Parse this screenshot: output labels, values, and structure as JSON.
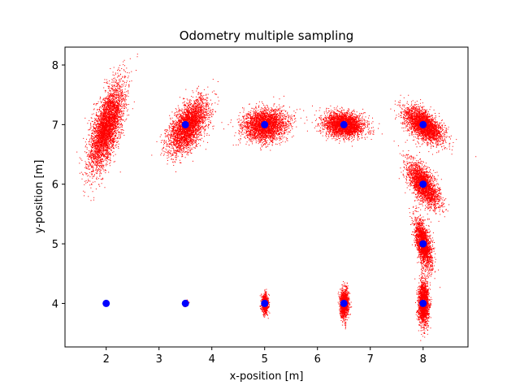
{
  "chart_data": {
    "type": "scatter",
    "title": "Odometry multiple sampling",
    "xlabel": "x-position [m]",
    "ylabel": "y-position [m]",
    "xlim": [
      1.22,
      8.85
    ],
    "ylim": [
      3.27,
      8.3
    ],
    "xticks": [
      2,
      3,
      4,
      5,
      6,
      7,
      8
    ],
    "yticks": [
      4,
      5,
      6,
      7,
      8
    ],
    "grid": false,
    "series": [
      {
        "role": "landmarks",
        "color": "#0000ff",
        "marker": "circle",
        "points": [
          [
            2.0,
            4.0
          ],
          [
            3.5,
            4.0
          ],
          [
            5.0,
            4.0
          ],
          [
            6.5,
            4.0
          ],
          [
            8.0,
            4.0
          ],
          [
            8.0,
            5.0
          ],
          [
            8.0,
            6.0
          ],
          [
            3.5,
            7.0
          ],
          [
            5.0,
            7.0
          ],
          [
            6.5,
            7.0
          ],
          [
            8.0,
            7.0
          ]
        ]
      },
      {
        "role": "samples",
        "color": "#ff0000",
        "marker": "pixel",
        "clouds": [
          {
            "center": [
              3.5,
              4.0
            ],
            "sx": 0.03,
            "sy": 0.03,
            "rho": 0.0,
            "n": 60
          },
          {
            "center": [
              5.0,
              4.0
            ],
            "sx": 0.03,
            "sy": 0.08,
            "rho": 0.0,
            "n": 900
          },
          {
            "center": [
              6.5,
              4.0
            ],
            "sx": 0.04,
            "sy": 0.12,
            "rho": 0.0,
            "n": 1400
          },
          {
            "center": [
              8.0,
              4.0
            ],
            "sx": 0.05,
            "sy": 0.18,
            "rho": 0.0,
            "n": 1800
          },
          {
            "center": [
              8.0,
              5.0
            ],
            "sx": 0.08,
            "sy": 0.2,
            "rho": -0.55,
            "n": 2000
          },
          {
            "center": [
              8.0,
              6.0
            ],
            "sx": 0.15,
            "sy": 0.19,
            "rho": -0.65,
            "n": 2400
          },
          {
            "center": [
              8.0,
              7.0
            ],
            "sx": 0.18,
            "sy": 0.15,
            "rho": -0.6,
            "n": 2800
          },
          {
            "center": [
              6.5,
              7.0
            ],
            "sx": 0.19,
            "sy": 0.1,
            "rho": -0.15,
            "n": 2800
          },
          {
            "center": [
              5.0,
              7.0
            ],
            "sx": 0.2,
            "sy": 0.13,
            "rho": 0.1,
            "n": 3000
          },
          {
            "center": [
              3.55,
              6.98
            ],
            "sx": 0.18,
            "sy": 0.22,
            "rho": 0.55,
            "n": 3200
          },
          {
            "center": [
              2.0,
              6.95
            ],
            "sx": 0.16,
            "sy": 0.35,
            "rho": 0.65,
            "n": 4000
          }
        ]
      }
    ]
  }
}
